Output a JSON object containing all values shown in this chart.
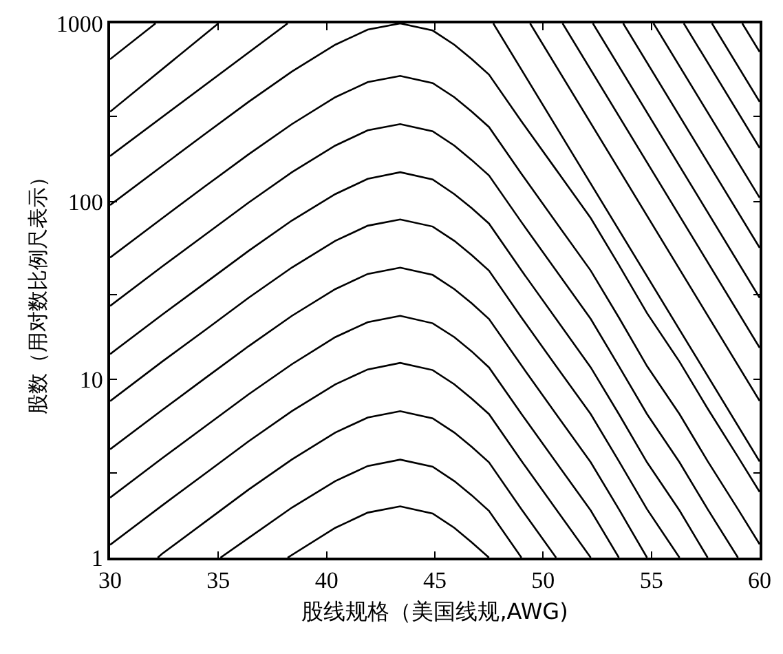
{
  "chart_data": {
    "type": "line",
    "xlabel": "股线规格（美国线规,AWG)",
    "ylabel": "股数（用对数比例尺表示）",
    "xlim": [
      30,
      60
    ],
    "xticks": [
      30,
      35,
      40,
      45,
      50,
      55,
      60
    ],
    "ylim": [
      1,
      1000
    ],
    "yticks": [
      1,
      {
        "value": 3,
        "label": null
      },
      10,
      {
        "value": 30,
        "label": null
      },
      100,
      {
        "value": 300,
        "label": null
      },
      1000
    ],
    "log": "y",
    "grid": false,
    "marker": "none",
    "line_style": "solid",
    "series": [
      {
        "color": "#000000",
        "x": [
          30,
          32.1
        ],
        "values": [
          629,
          1000
        ]
      },
      {
        "color": "#000000",
        "x": [
          30,
          35.0
        ],
        "values": [
          319,
          1000
        ]
      },
      {
        "color": "#000000",
        "x": [
          30,
          38.2
        ],
        "values": [
          180,
          1000
        ]
      },
      {
        "color": "#000000",
        "x": [
          38.2,
          40.4,
          41.9,
          43.4,
          44.9,
          45.9,
          46.7,
          47.5
        ],
        "values": [
          1,
          1.47,
          1.79,
          1.94,
          1.77,
          1.47,
          1.22,
          1
        ]
      },
      {
        "color": "#000000",
        "x": [
          35.1,
          36.4,
          38.4,
          40.4,
          41.9,
          43.4,
          44.9,
          45.9,
          46.7,
          47.5,
          49.0
        ],
        "values": [
          1,
          1.29,
          1.91,
          2.69,
          3.27,
          3.55,
          3.24,
          2.69,
          2.24,
          1.83,
          1
        ]
      },
      {
        "color": "#000000",
        "x": [
          32.2,
          32.4,
          34.4,
          36.4,
          38.4,
          40.4,
          41.9,
          43.4,
          44.9,
          45.9,
          46.7,
          47.5,
          49.0,
          50.6
        ],
        "values": [
          1,
          1.05,
          1.59,
          2.41,
          3.56,
          5.04,
          6.12,
          6.64,
          6.05,
          5.04,
          4.19,
          3.43,
          1.87,
          1
        ]
      },
      {
        "color": "#000000",
        "x": [
          30,
          32.4,
          34.4,
          36.4,
          38.4,
          40.4,
          41.9,
          43.4,
          44.9,
          45.9,
          46.7,
          47.5,
          49.0,
          50.6,
          52.2
        ],
        "values": [
          1.18,
          1.96,
          2.97,
          4.5,
          6.65,
          9.4,
          11.4,
          12.4,
          11.3,
          9.4,
          7.82,
          6.4,
          3.49,
          1.87,
          1
        ]
      },
      {
        "color": "#000000",
        "x": [
          30,
          32.4,
          34.4,
          36.4,
          38.4,
          40.4,
          41.9,
          43.4,
          44.9,
          45.9,
          46.7,
          47.5,
          49.0,
          50.6,
          52.2,
          53.5
        ],
        "values": [
          2.17,
          3.61,
          5.46,
          8.26,
          12.2,
          17.3,
          21.0,
          22.8,
          20.7,
          17.3,
          14.4,
          11.7,
          6.41,
          3.43,
          1.84,
          1
        ]
      },
      {
        "color": "#000000",
        "x": [
          30,
          32.4,
          34.4,
          36.4,
          38.4,
          40.4,
          41.9,
          43.4,
          44.9,
          45.9,
          46.7,
          47.5,
          49.0,
          50.6,
          52.2,
          53.5,
          54.8
        ],
        "values": [
          4.06,
          6.73,
          10.2,
          15.4,
          22.8,
          32.2,
          39.2,
          42.5,
          38.7,
          32.2,
          26.8,
          21.9,
          12.0,
          6.4,
          3.43,
          1.87,
          1
        ]
      },
      {
        "color": "#000000",
        "x": [
          30,
          32.4,
          34.4,
          36.4,
          38.4,
          40.4,
          41.9,
          43.4,
          44.9,
          45.9,
          46.7,
          47.5,
          49.0,
          50.6,
          52.2,
          53.5,
          54.8,
          56.3
        ],
        "values": [
          7.57,
          12.6,
          19.0,
          28.8,
          42.6,
          60.1,
          73.1,
          79.3,
          72.3,
          60.1,
          50.0,
          40.9,
          22.3,
          11.9,
          6.4,
          3.48,
          1.87,
          1
        ]
      },
      {
        "color": "#000000",
        "x": [
          30,
          32.4,
          34.4,
          36.4,
          38.4,
          40.4,
          41.9,
          43.4,
          44.9,
          45.9,
          46.7,
          47.5,
          49.0,
          50.6,
          52.2,
          53.5,
          54.8,
          56.3,
          57.6
        ],
        "values": [
          13.9,
          23.1,
          34.9,
          52.8,
          78.2,
          110,
          134,
          146,
          133,
          110,
          91.8,
          75.2,
          41.0,
          21.9,
          11.7,
          6.4,
          3.43,
          1.84,
          1
        ]
      },
      {
        "color": "#000000",
        "x": [
          30,
          32.4,
          34.4,
          36.4,
          38.4,
          40.4,
          41.9,
          43.4,
          44.9,
          45.9,
          46.7,
          47.5,
          49.0,
          50.6,
          52.2,
          53.5,
          54.8,
          56.3,
          57.6,
          59.0
        ],
        "values": [
          25.9,
          43.1,
          65.2,
          98.6,
          146,
          206,
          251,
          272,
          248,
          206,
          171,
          140,
          76.6,
          40.9,
          21.9,
          11.9,
          6.4,
          3.43,
          1.87,
          1
        ]
      },
      {
        "color": "#000000",
        "x": [
          30,
          32.4,
          34.4,
          36.4,
          38.4,
          40.4,
          41.9,
          43.4,
          44.9,
          45.9,
          46.7,
          47.5,
          49.0,
          50.6,
          52.2,
          53.5,
          54.8,
          56.3,
          57.6,
          59.0,
          60
        ],
        "values": [
          48.4,
          80.4,
          122,
          184,
          272,
          385,
          468,
          507,
          462,
          385,
          320,
          262,
          143,
          76.4,
          40.9,
          22.3,
          11.9,
          6.4,
          3.48,
          1.87,
          1.19
        ]
      },
      {
        "color": "#000000",
        "x": [
          30,
          32.4,
          34.4,
          36.4,
          38.4,
          40.4,
          41.9,
          43.4,
          44.9,
          45.9,
          46.7,
          47.5,
          49.0,
          50.6,
          52.2,
          53.5,
          54.8,
          56.3,
          57.6,
          59.0,
          60
        ],
        "values": [
          95.5,
          158,
          240,
          363,
          537,
          759,
          923,
          1000,
          912,
          759,
          631,
          516,
          282,
          151,
          80.7,
          44.0,
          23.6,
          12.6,
          6.87,
          3.68,
          2.34
        ]
      },
      {
        "color": "#000000",
        "x": [
          47.7,
          60
        ],
        "values": [
          1000,
          3.47
        ]
      },
      {
        "color": "#000000",
        "x": [
          49.4,
          60
        ],
        "values": [
          1000,
          7.59
        ]
      },
      {
        "color": "#000000",
        "x": [
          50.9,
          60
        ],
        "values": [
          1000,
          15.1
        ]
      },
      {
        "color": "#000000",
        "x": [
          52.3,
          60
        ],
        "values": [
          1000,
          28.8
        ]
      },
      {
        "color": "#000000",
        "x": [
          53.7,
          60
        ],
        "values": [
          1000,
          55.0
        ]
      },
      {
        "color": "#000000",
        "x": [
          55.1,
          60
        ],
        "values": [
          1000,
          105
        ]
      },
      {
        "color": "#000000",
        "x": [
          56.5,
          60
        ],
        "values": [
          1000,
          200
        ]
      },
      {
        "color": "#000000",
        "x": [
          57.8,
          60
        ],
        "values": [
          1000,
          363
        ]
      },
      {
        "color": "#000000",
        "x": [
          59.2,
          60
        ],
        "values": [
          1000,
          692
        ]
      }
    ]
  }
}
